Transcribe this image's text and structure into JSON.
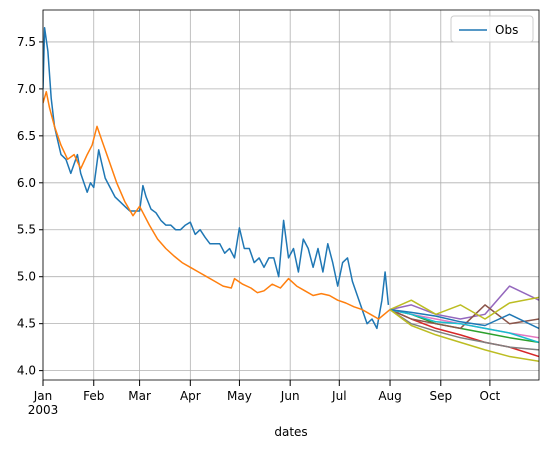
{
  "chart_data": {
    "type": "line",
    "xlabel": "dates",
    "grid": true,
    "legend": "upper right",
    "xlim": [
      0,
      303
    ],
    "ylim": [
      3.9,
      7.84
    ],
    "xticks": [
      {
        "value": 0,
        "label": "Jan\n2003"
      },
      {
        "value": 31,
        "label": "Feb"
      },
      {
        "value": 59,
        "label": "Mar"
      },
      {
        "value": 90,
        "label": "Apr"
      },
      {
        "value": 120,
        "label": "May"
      },
      {
        "value": 151,
        "label": "Jun"
      },
      {
        "value": 181,
        "label": "Jul"
      },
      {
        "value": 212,
        "label": "Aug"
      },
      {
        "value": 243,
        "label": "Sep"
      },
      {
        "value": 273,
        "label": "Oct"
      }
    ],
    "yticks": [
      {
        "value": 4,
        "label": "4.0"
      },
      4.5,
      {
        "value": 5,
        "label": "5.0"
      },
      5.5,
      {
        "value": 6,
        "label": "6.0"
      },
      6.5,
      {
        "value": 7,
        "label": "7.0"
      },
      7.5
    ],
    "series": [
      {
        "name": "Obs",
        "color": "#1f77b4",
        "x": [
          0,
          1,
          3,
          5,
          7,
          9,
          11,
          14,
          17,
          19,
          21,
          23,
          25,
          27,
          29,
          31,
          34,
          36,
          38,
          41,
          44,
          47,
          50,
          53,
          56,
          59,
          61,
          63,
          66,
          69,
          72,
          75,
          78,
          81,
          84,
          87,
          90,
          93,
          96,
          99,
          102,
          105,
          108,
          111,
          114,
          117,
          120,
          123,
          126,
          129,
          132,
          135,
          138,
          141,
          144,
          147,
          150,
          153,
          156,
          159,
          162,
          165,
          168,
          171,
          174,
          177,
          180,
          183,
          186,
          189,
          192,
          195,
          198,
          201,
          204,
          207,
          209,
          211
        ],
        "values": [
          7.0,
          7.65,
          7.4,
          6.9,
          6.6,
          6.45,
          6.3,
          6.25,
          6.1,
          6.2,
          6.3,
          6.1,
          6.0,
          5.9,
          6.0,
          5.95,
          6.35,
          6.2,
          6.05,
          5.95,
          5.85,
          5.8,
          5.75,
          5.7,
          5.7,
          5.7,
          5.97,
          5.85,
          5.72,
          5.68,
          5.6,
          5.55,
          5.55,
          5.5,
          5.5,
          5.55,
          5.58,
          5.45,
          5.5,
          5.42,
          5.35,
          5.35,
          5.35,
          5.25,
          5.3,
          5.2,
          5.52,
          5.3,
          5.3,
          5.15,
          5.2,
          5.1,
          5.2,
          5.2,
          5.0,
          5.6,
          5.2,
          5.3,
          5.05,
          5.4,
          5.3,
          5.1,
          5.3,
          5.05,
          5.35,
          5.15,
          4.9,
          5.15,
          5.2,
          4.95,
          4.8,
          4.65,
          4.5,
          4.55,
          4.45,
          4.75,
          5.05,
          4.7
        ]
      },
      {
        "color": "#ff7f0e",
        "x": [
          0,
          2,
          4,
          7,
          11,
          15,
          19,
          23,
          27,
          30,
          33,
          36,
          40,
          45,
          50,
          55,
          59,
          65,
          70,
          75,
          80,
          85,
          90,
          95,
          100,
          105,
          110,
          115,
          117,
          122,
          127,
          131,
          135,
          140,
          145,
          150,
          155,
          160,
          165,
          170,
          175,
          180,
          185,
          190,
          195,
          200,
          205,
          212
        ],
        "values": [
          6.85,
          6.97,
          6.8,
          6.6,
          6.4,
          6.25,
          6.3,
          6.15,
          6.3,
          6.4,
          6.6,
          6.45,
          6.25,
          6.0,
          5.8,
          5.65,
          5.75,
          5.55,
          5.4,
          5.3,
          5.22,
          5.15,
          5.1,
          5.05,
          5.0,
          4.95,
          4.9,
          4.88,
          4.98,
          4.92,
          4.88,
          4.83,
          4.85,
          4.92,
          4.88,
          4.98,
          4.9,
          4.85,
          4.8,
          4.82,
          4.8,
          4.75,
          4.72,
          4.68,
          4.65,
          4.6,
          4.55,
          4.65
        ]
      },
      {
        "color": "#2ca02c",
        "x": [
          212,
          225,
          240,
          255,
          270,
          285,
          303
        ],
        "values": [
          4.65,
          4.6,
          4.5,
          4.45,
          4.4,
          4.35,
          4.3
        ]
      },
      {
        "color": "#d62728",
        "x": [
          212,
          225,
          240,
          255,
          270,
          285,
          303
        ],
        "values": [
          4.65,
          4.55,
          4.45,
          4.38,
          4.3,
          4.25,
          4.15
        ]
      },
      {
        "color": "#9467bd",
        "x": [
          212,
          225,
          240,
          255,
          270,
          285,
          303
        ],
        "values": [
          4.65,
          4.7,
          4.6,
          4.55,
          4.6,
          4.9,
          4.75
        ]
      },
      {
        "color": "#8c564b",
        "x": [
          212,
          225,
          240,
          255,
          270,
          285,
          303
        ],
        "values": [
          4.65,
          4.55,
          4.5,
          4.45,
          4.7,
          4.5,
          4.55
        ]
      },
      {
        "color": "#e377c2",
        "x": [
          212,
          225,
          240,
          255,
          270,
          285,
          303
        ],
        "values": [
          4.65,
          4.6,
          4.55,
          4.5,
          4.45,
          4.4,
          4.35
        ]
      },
      {
        "color": "#7f7f7f",
        "x": [
          212,
          225,
          240,
          255,
          270,
          285,
          303
        ],
        "values": [
          4.65,
          4.5,
          4.42,
          4.35,
          4.3,
          4.25,
          4.22
        ]
      },
      {
        "color": "#bcbd22",
        "x": [
          212,
          225,
          240,
          255,
          270,
          285,
          303
        ],
        "values": [
          4.65,
          4.75,
          4.6,
          4.7,
          4.55,
          4.72,
          4.78
        ]
      },
      {
        "color": "#17becf",
        "x": [
          212,
          225,
          240,
          255,
          270,
          285,
          303
        ],
        "values": [
          4.65,
          4.6,
          4.52,
          4.5,
          4.45,
          4.4,
          4.3
        ]
      },
      {
        "color": "#1f77b4",
        "x": [
          212,
          225,
          240,
          255,
          270,
          285,
          303
        ],
        "values": [
          4.65,
          4.62,
          4.58,
          4.52,
          4.48,
          4.6,
          4.45
        ]
      },
      {
        "color": "#bcbd22",
        "x": [
          212,
          225,
          240,
          255,
          270,
          285,
          303
        ],
        "values": [
          4.65,
          4.48,
          4.38,
          4.3,
          4.22,
          4.15,
          4.1
        ]
      }
    ]
  }
}
